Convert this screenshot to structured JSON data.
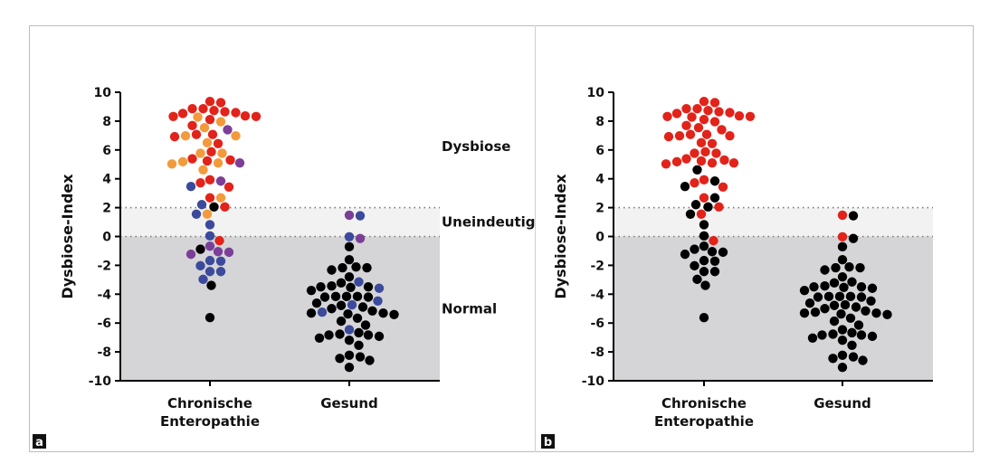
{
  "chart_data": [
    {
      "panel_label": "a",
      "type": "scatter",
      "ylabel": "Dysbiose-Index",
      "ylim": [
        -10,
        10
      ],
      "yticks": [
        "10",
        "8",
        "6",
        "4",
        "2",
        "0",
        "-2",
        "-4",
        "-6",
        "-8",
        "-10"
      ],
      "categories": [
        "Chronische\nEnteropathie",
        "Gesund"
      ],
      "zones": [
        {
          "label": "Dysbiose",
          "from": 2,
          "to": 10,
          "color": "#ffffff"
        },
        {
          "label": "Uneindeutig",
          "from": 0,
          "to": 2,
          "color": "#f2f2f2"
        },
        {
          "label": "Normal",
          "from": -10,
          "to": 0,
          "color": "#d5d5d8"
        }
      ],
      "colors": {
        "R": "#e2231a",
        "O": "#f39b3c",
        "P": "#7b3f98",
        "B": "#3c4a9c",
        "K": "#000000"
      },
      "series": [
        {
          "category": "Chronische\nEnteropathie",
          "points": [
            [
              9.36,
              "R"
            ],
            [
              9.28,
              "R"
            ],
            [
              8.86,
              "R"
            ],
            [
              8.86,
              "R"
            ],
            [
              8.59,
              "R"
            ],
            [
              8.73,
              "R"
            ],
            [
              8.65,
              "R"
            ],
            [
              8.32,
              "R"
            ],
            [
              8.32,
              "R"
            ],
            [
              8.53,
              "R"
            ],
            [
              8.11,
              "R"
            ],
            [
              8.36,
              "R"
            ],
            [
              8.28,
              "O"
            ],
            [
              7.96,
              "O"
            ],
            [
              7.54,
              "O"
            ],
            [
              7.4,
              "P"
            ],
            [
              7.69,
              "R"
            ],
            [
              6.98,
              "O"
            ],
            [
              6.98,
              "O"
            ],
            [
              7.07,
              "R"
            ],
            [
              7.07,
              "R"
            ],
            [
              6.92,
              "R"
            ],
            [
              6.44,
              "R"
            ],
            [
              6.5,
              "O"
            ],
            [
              5.77,
              "O"
            ],
            [
              5.87,
              "R"
            ],
            [
              5.77,
              "O"
            ],
            [
              5.1,
              "O"
            ],
            [
              5.24,
              "R"
            ],
            [
              5.18,
              "O"
            ],
            [
              5.39,
              "R"
            ],
            [
              5.3,
              "R"
            ],
            [
              5.1,
              "P"
            ],
            [
              5.03,
              "O"
            ],
            [
              4.62,
              "O"
            ],
            [
              3.72,
              "R"
            ],
            [
              3.84,
              "P"
            ],
            [
              3.93,
              "R"
            ],
            [
              3.43,
              "R"
            ],
            [
              3.47,
              "B"
            ],
            [
              2.68,
              "R"
            ],
            [
              2.68,
              "O"
            ],
            [
              2.05,
              "K"
            ],
            [
              2.05,
              "R"
            ],
            [
              2.21,
              "B"
            ],
            [
              1.55,
              "O"
            ],
            [
              1.55,
              "B"
            ],
            [
              0.82,
              "B"
            ],
            [
              0.04,
              "B"
            ],
            [
              -0.29,
              "R"
            ],
            [
              -0.88,
              "K"
            ],
            [
              -0.67,
              "P"
            ],
            [
              -1.23,
              "P"
            ],
            [
              -1.09,
              "P"
            ],
            [
              -1.05,
              "P"
            ],
            [
              -1.71,
              "B"
            ],
            [
              -1.67,
              "B"
            ],
            [
              -2.03,
              "B"
            ],
            [
              -2.43,
              "B"
            ],
            [
              -2.43,
              "B"
            ],
            [
              -2.97,
              "B"
            ],
            [
              -3.39,
              "K"
            ],
            [
              -5.62,
              "K"
            ]
          ]
        },
        {
          "category": "Gesund",
          "points": [
            [
              1.48,
              "P"
            ],
            [
              1.44,
              "B"
            ],
            [
              -0.02,
              "B"
            ],
            [
              -0.14,
              "P"
            ],
            [
              -0.71,
              "K"
            ],
            [
              -1.61,
              "K"
            ],
            [
              -2.11,
              "K"
            ],
            [
              -2.17,
              "K"
            ],
            [
              -2.32,
              "K"
            ],
            [
              -2.17,
              "K"
            ],
            [
              -2.8,
              "K"
            ],
            [
              -3.15,
              "B"
            ],
            [
              -3.22,
              "K"
            ],
            [
              -3.43,
              "K"
            ],
            [
              -3.59,
              "B"
            ],
            [
              -3.49,
              "K"
            ],
            [
              -3.49,
              "K"
            ],
            [
              -3.53,
              "K"
            ],
            [
              -3.74,
              "K"
            ],
            [
              -4.2,
              "K"
            ],
            [
              -4.16,
              "K"
            ],
            [
              -4.2,
              "K"
            ],
            [
              -4.16,
              "K"
            ],
            [
              -4.16,
              "K"
            ],
            [
              -4.47,
              "B"
            ],
            [
              -4.74,
              "B"
            ],
            [
              -4.89,
              "K"
            ],
            [
              -4.62,
              "K"
            ],
            [
              -4.78,
              "K"
            ],
            [
              -5.0,
              "K"
            ],
            [
              -5.37,
              "K"
            ],
            [
              -5.31,
              "K"
            ],
            [
              -5.16,
              "K"
            ],
            [
              -5.25,
              "B"
            ],
            [
              -5.41,
              "K"
            ],
            [
              -5.31,
              "K"
            ],
            [
              -5.66,
              "K"
            ],
            [
              -5.87,
              "K"
            ],
            [
              -6.14,
              "K"
            ],
            [
              -6.46,
              "B"
            ],
            [
              -6.67,
              "K"
            ],
            [
              -6.77,
              "K"
            ],
            [
              -6.92,
              "K"
            ],
            [
              -7.04,
              "K"
            ],
            [
              -6.83,
              "K"
            ],
            [
              -6.83,
              "K"
            ],
            [
              -7.19,
              "K"
            ],
            [
              -7.54,
              "K"
            ],
            [
              -8.34,
              "K"
            ],
            [
              -8.23,
              "K"
            ],
            [
              -8.45,
              "K"
            ],
            [
              -8.59,
              "K"
            ],
            [
              -9.07,
              "K"
            ]
          ]
        }
      ]
    },
    {
      "panel_label": "b",
      "type": "scatter",
      "ylabel": "Dysbiose-Index",
      "ylim": [
        -10,
        10
      ],
      "yticks": [
        "10",
        "8",
        "6",
        "4",
        "2",
        "0",
        "-2",
        "-4",
        "-6",
        "-8",
        "-10"
      ],
      "categories": [
        "Chronische\nEnteropathie",
        "Gesund"
      ],
      "zones": [
        {
          "label": "",
          "from": 2,
          "to": 10,
          "color": "#ffffff"
        },
        {
          "label": "",
          "from": 0,
          "to": 2,
          "color": "#f2f2f2"
        },
        {
          "label": "",
          "from": -10,
          "to": 0,
          "color": "#d5d5d8"
        }
      ],
      "colors": {
        "R": "#e2231a",
        "K": "#000000"
      },
      "series": [
        {
          "category": "Chronische\nEnteropathie",
          "points": [
            [
              9.36,
              "R"
            ],
            [
              9.28,
              "R"
            ],
            [
              8.86,
              "R"
            ],
            [
              8.86,
              "R"
            ],
            [
              8.59,
              "R"
            ],
            [
              8.73,
              "R"
            ],
            [
              8.65,
              "R"
            ],
            [
              8.32,
              "R"
            ],
            [
              8.32,
              "R"
            ],
            [
              8.53,
              "R"
            ],
            [
              8.11,
              "R"
            ],
            [
              8.36,
              "R"
            ],
            [
              8.28,
              "R"
            ],
            [
              7.96,
              "R"
            ],
            [
              7.54,
              "R"
            ],
            [
              7.4,
              "R"
            ],
            [
              7.69,
              "R"
            ],
            [
              6.98,
              "R"
            ],
            [
              6.98,
              "R"
            ],
            [
              7.07,
              "R"
            ],
            [
              7.07,
              "R"
            ],
            [
              6.92,
              "R"
            ],
            [
              6.44,
              "R"
            ],
            [
              6.5,
              "R"
            ],
            [
              5.77,
              "R"
            ],
            [
              5.87,
              "R"
            ],
            [
              5.77,
              "R"
            ],
            [
              5.1,
              "R"
            ],
            [
              5.24,
              "R"
            ],
            [
              5.18,
              "R"
            ],
            [
              5.39,
              "R"
            ],
            [
              5.3,
              "R"
            ],
            [
              5.1,
              "R"
            ],
            [
              5.03,
              "R"
            ],
            [
              4.62,
              "K"
            ],
            [
              3.72,
              "R"
            ],
            [
              3.84,
              "K"
            ],
            [
              3.93,
              "R"
            ],
            [
              3.43,
              "R"
            ],
            [
              3.47,
              "K"
            ],
            [
              2.68,
              "R"
            ],
            [
              2.68,
              "K"
            ],
            [
              2.05,
              "K"
            ],
            [
              2.05,
              "R"
            ],
            [
              2.21,
              "K"
            ],
            [
              1.55,
              "R"
            ],
            [
              1.55,
              "K"
            ],
            [
              0.82,
              "K"
            ],
            [
              0.04,
              "K"
            ],
            [
              -0.29,
              "R"
            ],
            [
              -0.88,
              "K"
            ],
            [
              -0.67,
              "K"
            ],
            [
              -1.23,
              "K"
            ],
            [
              -1.09,
              "K"
            ],
            [
              -1.05,
              "K"
            ],
            [
              -1.71,
              "K"
            ],
            [
              -1.67,
              "K"
            ],
            [
              -2.03,
              "K"
            ],
            [
              -2.43,
              "K"
            ],
            [
              -2.43,
              "K"
            ],
            [
              -2.97,
              "K"
            ],
            [
              -3.39,
              "K"
            ],
            [
              -5.62,
              "K"
            ]
          ]
        },
        {
          "category": "Gesund",
          "points": [
            [
              1.48,
              "R"
            ],
            [
              1.44,
              "K"
            ],
            [
              -0.02,
              "R"
            ],
            [
              -0.14,
              "K"
            ],
            [
              -0.71,
              "K"
            ],
            [
              -1.61,
              "K"
            ],
            [
              -2.11,
              "K"
            ],
            [
              -2.17,
              "K"
            ],
            [
              -2.32,
              "K"
            ],
            [
              -2.17,
              "K"
            ],
            [
              -2.8,
              "K"
            ],
            [
              -3.15,
              "K"
            ],
            [
              -3.22,
              "K"
            ],
            [
              -3.43,
              "K"
            ],
            [
              -3.59,
              "K"
            ],
            [
              -3.49,
              "K"
            ],
            [
              -3.49,
              "K"
            ],
            [
              -3.53,
              "K"
            ],
            [
              -3.74,
              "K"
            ],
            [
              -4.2,
              "K"
            ],
            [
              -4.16,
              "K"
            ],
            [
              -4.2,
              "K"
            ],
            [
              -4.16,
              "K"
            ],
            [
              -4.16,
              "K"
            ],
            [
              -4.47,
              "K"
            ],
            [
              -4.74,
              "K"
            ],
            [
              -4.89,
              "K"
            ],
            [
              -4.62,
              "K"
            ],
            [
              -4.78,
              "K"
            ],
            [
              -5.0,
              "K"
            ],
            [
              -5.37,
              "K"
            ],
            [
              -5.31,
              "K"
            ],
            [
              -5.16,
              "K"
            ],
            [
              -5.25,
              "K"
            ],
            [
              -5.41,
              "K"
            ],
            [
              -5.31,
              "K"
            ],
            [
              -5.66,
              "K"
            ],
            [
              -5.87,
              "K"
            ],
            [
              -6.14,
              "K"
            ],
            [
              -6.46,
              "K"
            ],
            [
              -6.67,
              "K"
            ],
            [
              -6.77,
              "K"
            ],
            [
              -6.92,
              "K"
            ],
            [
              -7.04,
              "K"
            ],
            [
              -6.83,
              "K"
            ],
            [
              -6.83,
              "K"
            ],
            [
              -7.19,
              "K"
            ],
            [
              -7.54,
              "K"
            ],
            [
              -8.34,
              "K"
            ],
            [
              -8.23,
              "K"
            ],
            [
              -8.45,
              "K"
            ],
            [
              -8.59,
              "K"
            ],
            [
              -9.07,
              "K"
            ]
          ]
        }
      ]
    }
  ]
}
